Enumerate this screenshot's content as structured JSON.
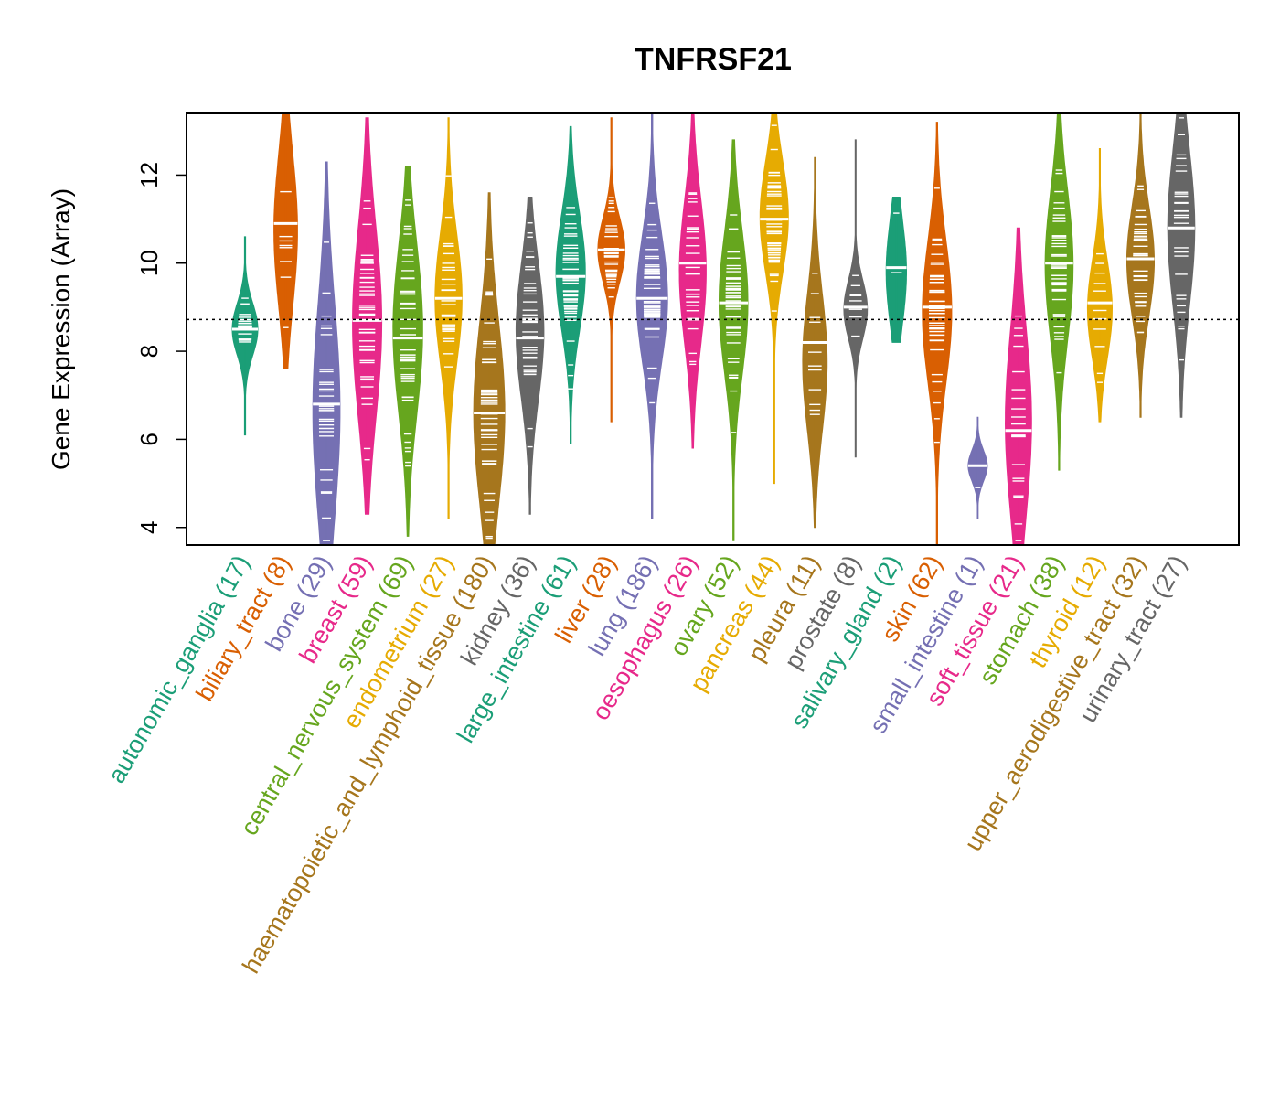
{
  "chart_data": {
    "type": "violin",
    "title": "TNFRSF21",
    "xlabel": "",
    "ylabel": "Gene Expression (Array)",
    "ylim": [
      3.6,
      13.4
    ],
    "yticks": [
      4,
      6,
      8,
      10,
      12
    ],
    "reference_line": 8.72,
    "grid": false,
    "legend": "none",
    "categories": [
      {
        "name": "autonomic_ganglia",
        "n": 17,
        "label": "autonomic_ganglia (17)",
        "color": "#1B9E77",
        "min": 6.1,
        "max": 10.6,
        "median": 8.5,
        "q1": 8.1,
        "q3": 8.9
      },
      {
        "name": "biliary_tract",
        "n": 8,
        "label": "biliary_tract (8)",
        "color": "#D95F02",
        "min": 7.6,
        "max": 13.4,
        "median": 10.9,
        "q1": 9.6,
        "q3": 11.9
      },
      {
        "name": "bone",
        "n": 29,
        "label": "bone (29)",
        "color": "#7570B3",
        "min": 3.6,
        "max": 12.3,
        "median": 6.8,
        "q1": 5.0,
        "q3": 8.3
      },
      {
        "name": "breast",
        "n": 59,
        "label": "breast (59)",
        "color": "#E7298A",
        "min": 4.3,
        "max": 13.3,
        "median": 8.7,
        "q1": 7.2,
        "q3": 10.1
      },
      {
        "name": "central_nervous_system",
        "n": 69,
        "label": "central_nervous_system (69)",
        "color": "#66A61E",
        "min": 3.8,
        "max": 12.2,
        "median": 8.3,
        "q1": 7.2,
        "q3": 9.8
      },
      {
        "name": "endometrium",
        "n": 27,
        "label": "endometrium (27)",
        "color": "#E6AB02",
        "min": 4.2,
        "max": 13.3,
        "median": 9.2,
        "q1": 8.2,
        "q3": 10.2
      },
      {
        "name": "haematopoietic_and_lymphoid_tissue",
        "n": 180,
        "label": "haematopoietic_and_lymphoid_tissue (180)",
        "color": "#A6761D",
        "min": 3.6,
        "max": 11.6,
        "median": 6.6,
        "q1": 5.2,
        "q3": 8.0
      },
      {
        "name": "kidney",
        "n": 36,
        "label": "kidney (36)",
        "color": "#666666",
        "min": 4.3,
        "max": 11.5,
        "median": 8.3,
        "q1": 7.4,
        "q3": 9.5
      },
      {
        "name": "large_intestine",
        "n": 61,
        "label": "large_intestine (61)",
        "color": "#1B9E77",
        "min": 5.9,
        "max": 13.1,
        "median": 9.7,
        "q1": 8.9,
        "q3": 10.7
      },
      {
        "name": "liver",
        "n": 28,
        "label": "liver (28)",
        "color": "#D95F02",
        "min": 6.4,
        "max": 13.3,
        "median": 10.3,
        "q1": 9.8,
        "q3": 10.8
      },
      {
        "name": "lung",
        "n": 186,
        "label": "lung (186)",
        "color": "#7570B3",
        "min": 4.2,
        "max": 13.4,
        "median": 9.2,
        "q1": 8.2,
        "q3": 10.2
      },
      {
        "name": "oesophagus",
        "n": 26,
        "label": "oesophagus (26)",
        "color": "#E7298A",
        "min": 5.8,
        "max": 13.4,
        "median": 10.0,
        "q1": 8.7,
        "q3": 10.9
      },
      {
        "name": "ovary",
        "n": 52,
        "label": "ovary (52)",
        "color": "#66A61E",
        "min": 3.7,
        "max": 12.8,
        "median": 9.1,
        "q1": 8.0,
        "q3": 10.2
      },
      {
        "name": "pancreas",
        "n": 44,
        "label": "pancreas (44)",
        "color": "#E6AB02",
        "min": 5.0,
        "max": 13.4,
        "median": 11.0,
        "q1": 10.2,
        "q3": 11.9
      },
      {
        "name": "pleura",
        "n": 11,
        "label": "pleura (11)",
        "color": "#A6761D",
        "min": 4.0,
        "max": 12.4,
        "median": 8.2,
        "q1": 6.7,
        "q3": 8.8
      },
      {
        "name": "prostate",
        "n": 8,
        "label": "prostate (8)",
        "color": "#666666",
        "min": 5.6,
        "max": 12.8,
        "median": 9.0,
        "q1": 8.5,
        "q3": 9.4
      },
      {
        "name": "salivary_gland",
        "n": 2,
        "label": "salivary_gland (2)",
        "color": "#1B9E77",
        "min": 8.2,
        "max": 11.5,
        "median": 9.9,
        "q1": 9.0,
        "q3": 10.6
      },
      {
        "name": "skin",
        "n": 62,
        "label": "skin (62)",
        "color": "#D95F02",
        "min": 3.6,
        "max": 13.2,
        "median": 9.0,
        "q1": 7.8,
        "q3": 10.0
      },
      {
        "name": "small_intestine",
        "n": 1,
        "label": "small_intestine (1)",
        "color": "#7570B3",
        "min": 4.2,
        "max": 6.5,
        "median": 5.4,
        "q1": 5.4,
        "q3": 5.4
      },
      {
        "name": "soft_tissue",
        "n": 21,
        "label": "soft_tissue (21)",
        "color": "#E7298A",
        "min": 3.6,
        "max": 10.8,
        "median": 6.2,
        "q1": 5.0,
        "q3": 7.8
      },
      {
        "name": "stomach",
        "n": 38,
        "label": "stomach (38)",
        "color": "#66A61E",
        "min": 5.3,
        "max": 13.4,
        "median": 10.0,
        "q1": 8.8,
        "q3": 11.1
      },
      {
        "name": "thyroid",
        "n": 12,
        "label": "thyroid (12)",
        "color": "#E6AB02",
        "min": 6.4,
        "max": 12.6,
        "median": 9.1,
        "q1": 8.2,
        "q3": 9.7
      },
      {
        "name": "upper_aerodigestive_tract",
        "n": 32,
        "label": "upper_aerodigestive_tract (32)",
        "color": "#A6761D",
        "min": 6.5,
        "max": 13.4,
        "median": 10.1,
        "q1": 9.2,
        "q3": 10.9
      },
      {
        "name": "urinary_tract",
        "n": 27,
        "label": "urinary_tract (27)",
        "color": "#666666",
        "min": 6.5,
        "max": 13.4,
        "median": 10.8,
        "q1": 9.6,
        "q3": 12.0
      }
    ]
  }
}
